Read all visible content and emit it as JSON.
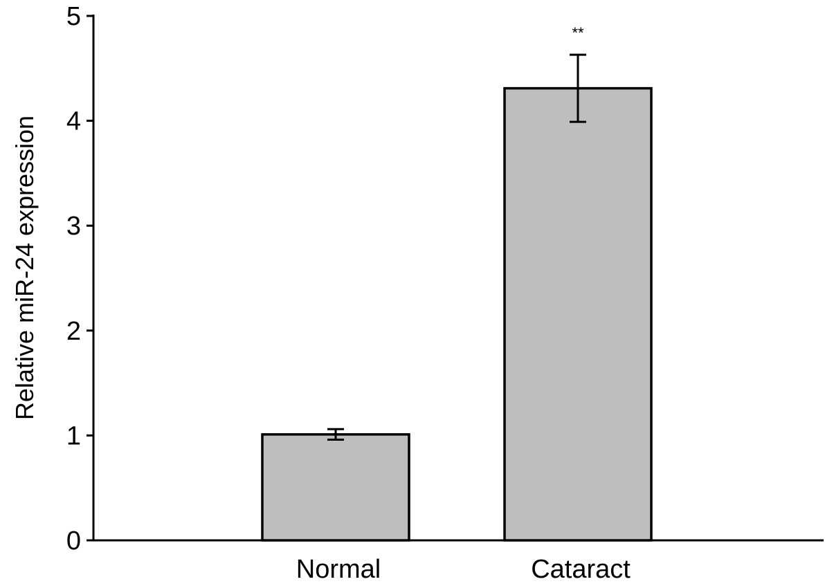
{
  "chart_data": {
    "type": "bar",
    "categories": [
      "Normal",
      "Cataract"
    ],
    "values": [
      1.01,
      4.31
    ],
    "error": [
      0.05,
      0.32
    ],
    "annotations": [
      "",
      "**"
    ],
    "title": "",
    "xlabel": "",
    "ylabel": "Relative miR-24 expression",
    "ylim": [
      0,
      5
    ],
    "yticks": [
      0,
      1,
      2,
      3,
      4,
      5
    ],
    "grid": false,
    "bar_color": "#bebebe"
  }
}
